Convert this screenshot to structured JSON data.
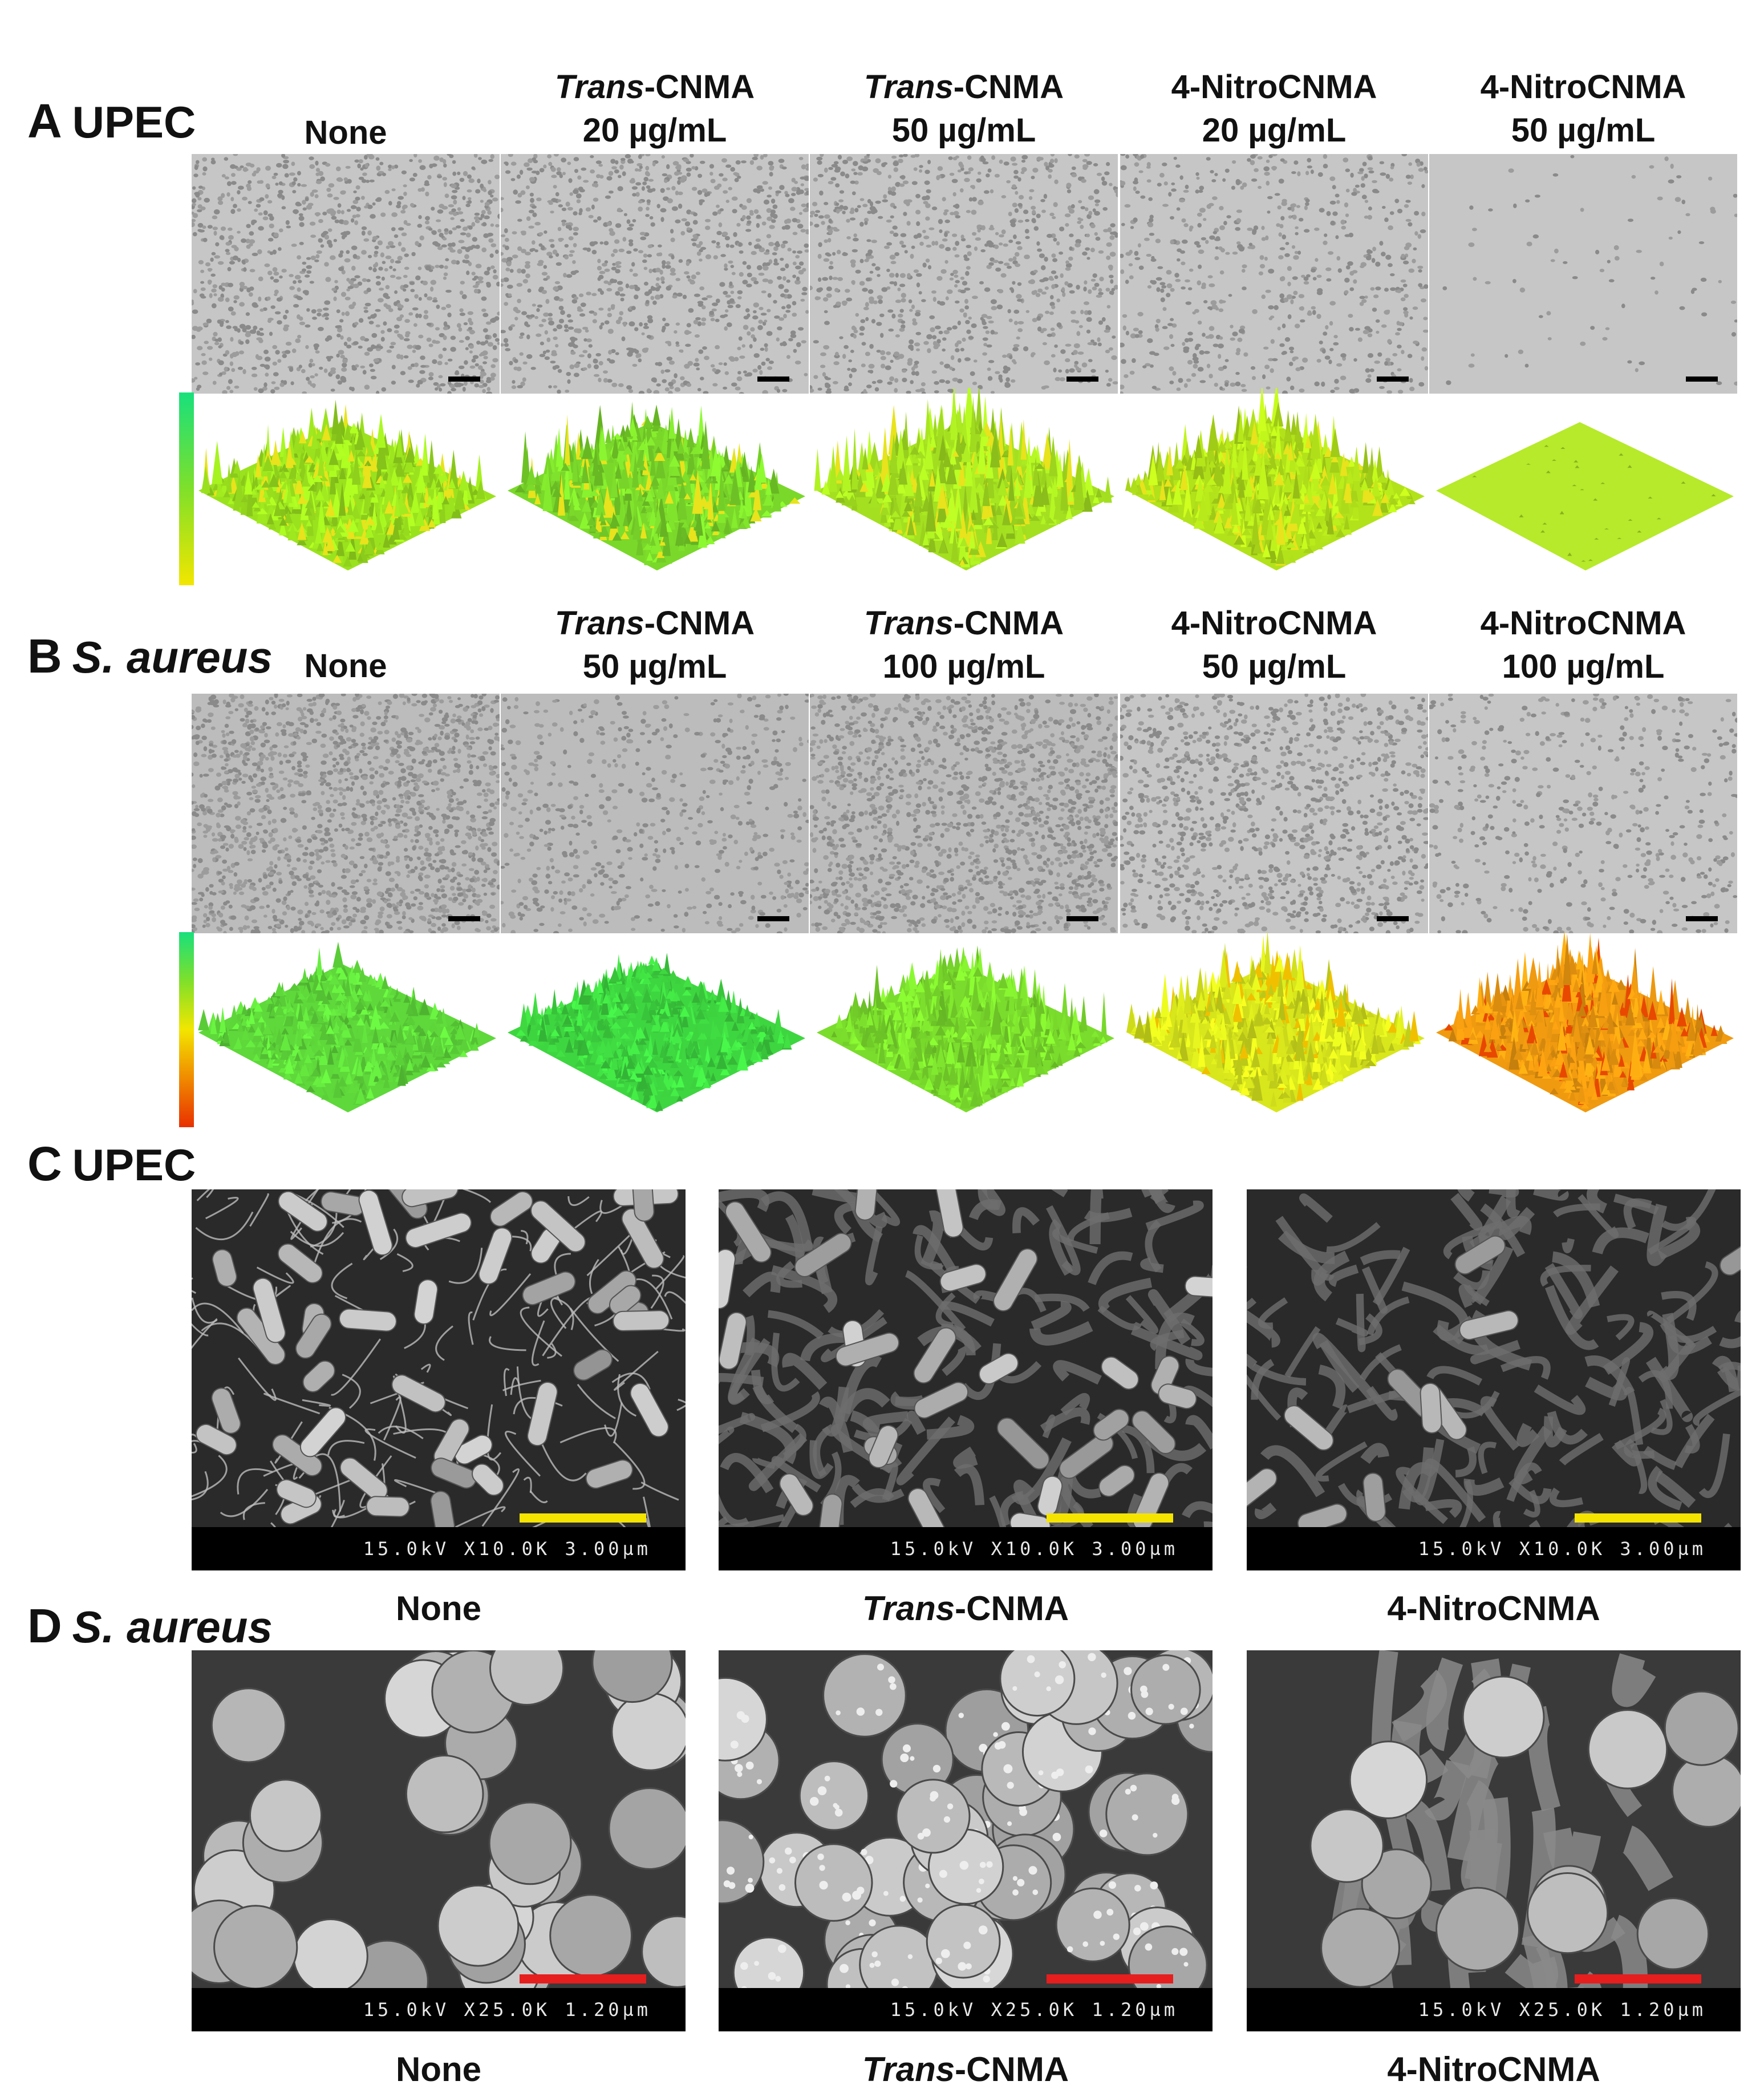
{
  "panels": {
    "A": {
      "letter": "A",
      "organism": "UPEC",
      "columns": [
        {
          "line1": "",
          "line1_it": "",
          "line1_rest": "None",
          "line2": ""
        },
        {
          "line1_it": "Trans",
          "line1_rest": "-CNMA",
          "line2": "20 µg/mL"
        },
        {
          "line1_it": "Trans",
          "line1_rest": "-CNMA",
          "line2": "50 µg/mL"
        },
        {
          "line1_it": "",
          "line1_rest": "4-NitroCNMA",
          "line2": "20 µg/mL"
        },
        {
          "line1_it": "",
          "line1_rest": "4-NitroCNMA",
          "line2": "50 µg/mL"
        }
      ],
      "colorbar": [
        "#18e07c",
        "#7fe02a",
        "#f2e600"
      ]
    },
    "B": {
      "letter": "B",
      "organism": "S. aureus",
      "columns": [
        {
          "line1_it": "",
          "line1_rest": "None",
          "line2": ""
        },
        {
          "line1_it": "Trans",
          "line1_rest": "-CNMA",
          "line2": "50 µg/mL"
        },
        {
          "line1_it": "Trans",
          "line1_rest": "-CNMA",
          "line2": "100 µg/mL"
        },
        {
          "line1_it": "",
          "line1_rest": "4-NitroCNMA",
          "line2": "50 µg/mL"
        },
        {
          "line1_it": "",
          "line1_rest": "4-NitroCNMA",
          "line2": "100 µg/mL"
        }
      ],
      "colorbar": [
        "#18e07c",
        "#7fe02a",
        "#f2e600",
        "#f08a00",
        "#e83000"
      ]
    },
    "C": {
      "letter": "C",
      "organism": "UPEC",
      "sem_text": "15.0kV X10.0K 3.00µm",
      "scale_color": "#f5e400",
      "captions": [
        {
          "it": "",
          "rest": "None"
        },
        {
          "it": "Trans",
          "rest": "-CNMA"
        },
        {
          "it": "",
          "rest": "4-NitroCNMA"
        }
      ]
    },
    "D": {
      "letter": "D",
      "organism": "S. aureus",
      "sem_text": "15.0kV X25.0K 1.20µm",
      "scale_color": "#e61e1e",
      "captions": [
        {
          "it": "",
          "rest": "None"
        },
        {
          "it": "Trans",
          "rest": "-CNMA"
        },
        {
          "it": "",
          "rest": "4-NitroCNMA"
        }
      ]
    }
  },
  "surface_colors": {
    "A": [
      "#9be21e",
      "#7ad82a",
      "#a4e020",
      "#b2e21a",
      "#b6ea2a"
    ],
    "B": [
      "#5ed83a",
      "#3ed640",
      "#7adc2c",
      "#d8e61c",
      "#f09a10"
    ]
  },
  "densities": {
    "A": [
      1100,
      1000,
      900,
      650,
      80
    ],
    "B": [
      1600,
      600,
      1500,
      1100,
      500
    ]
  }
}
